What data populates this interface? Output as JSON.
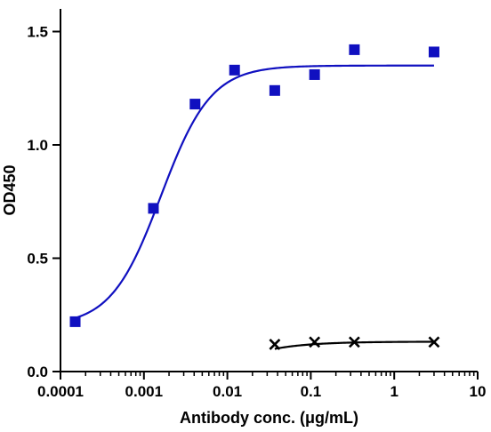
{
  "chart_data": {
    "type": "scatter",
    "xlabel": "Antibody conc. (μg/mL)",
    "ylabel": "OD450",
    "x_scale": "log",
    "xlim": [
      0.0001,
      10
    ],
    "ylim": [
      0,
      1.6
    ],
    "x_ticks": [
      "0.0001",
      "0.001",
      "0.01",
      "0.1",
      "1",
      "10"
    ],
    "y_ticks": [
      "0.0",
      "0.5",
      "1.0",
      "1.5"
    ],
    "grid": false,
    "legend": "none",
    "series": [
      {
        "marker": "square",
        "color": "#1010c0",
        "fit": "sigmoidal",
        "x": [
          0.00015,
          0.0013,
          0.0041,
          0.0122,
          0.037,
          0.111,
          0.333,
          3.0
        ],
        "y": [
          0.22,
          0.72,
          1.18,
          1.33,
          1.24,
          1.31,
          1.42,
          1.41
        ]
      },
      {
        "marker": "cross",
        "color": "#000000",
        "fit": "saturation",
        "x": [
          0.037,
          0.111,
          0.333,
          3.0
        ],
        "y": [
          0.12,
          0.13,
          0.13,
          0.13
        ]
      }
    ]
  }
}
